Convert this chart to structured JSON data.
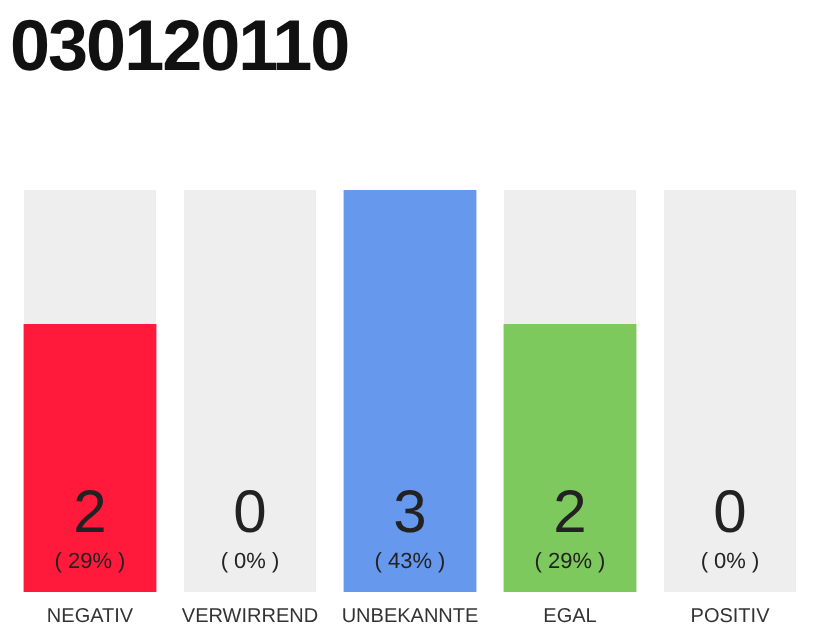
{
  "chart_data": {
    "type": "bar",
    "title": "030120110",
    "categories": [
      "NEGATIV",
      "VERWIRREND",
      "UNBEKANNTE",
      "EGAL",
      "POSITIV"
    ],
    "values": [
      2,
      0,
      3,
      2,
      0
    ],
    "colors": [
      "#ff1a3c",
      "#cccccc",
      "#6699ee",
      "#7dc95e",
      "#cccccc"
    ],
    "value_labels": [
      "2",
      "0",
      "3",
      "2",
      "0"
    ],
    "ylim": [
      0,
      3
    ],
    "tick_labels": "x",
    "grid": false,
    "legend": false,
    "annotations": [
      "( 29% )",
      "( 0% )",
      "( 43% )",
      "( 29% )",
      "( 0% )"
    ]
  }
}
